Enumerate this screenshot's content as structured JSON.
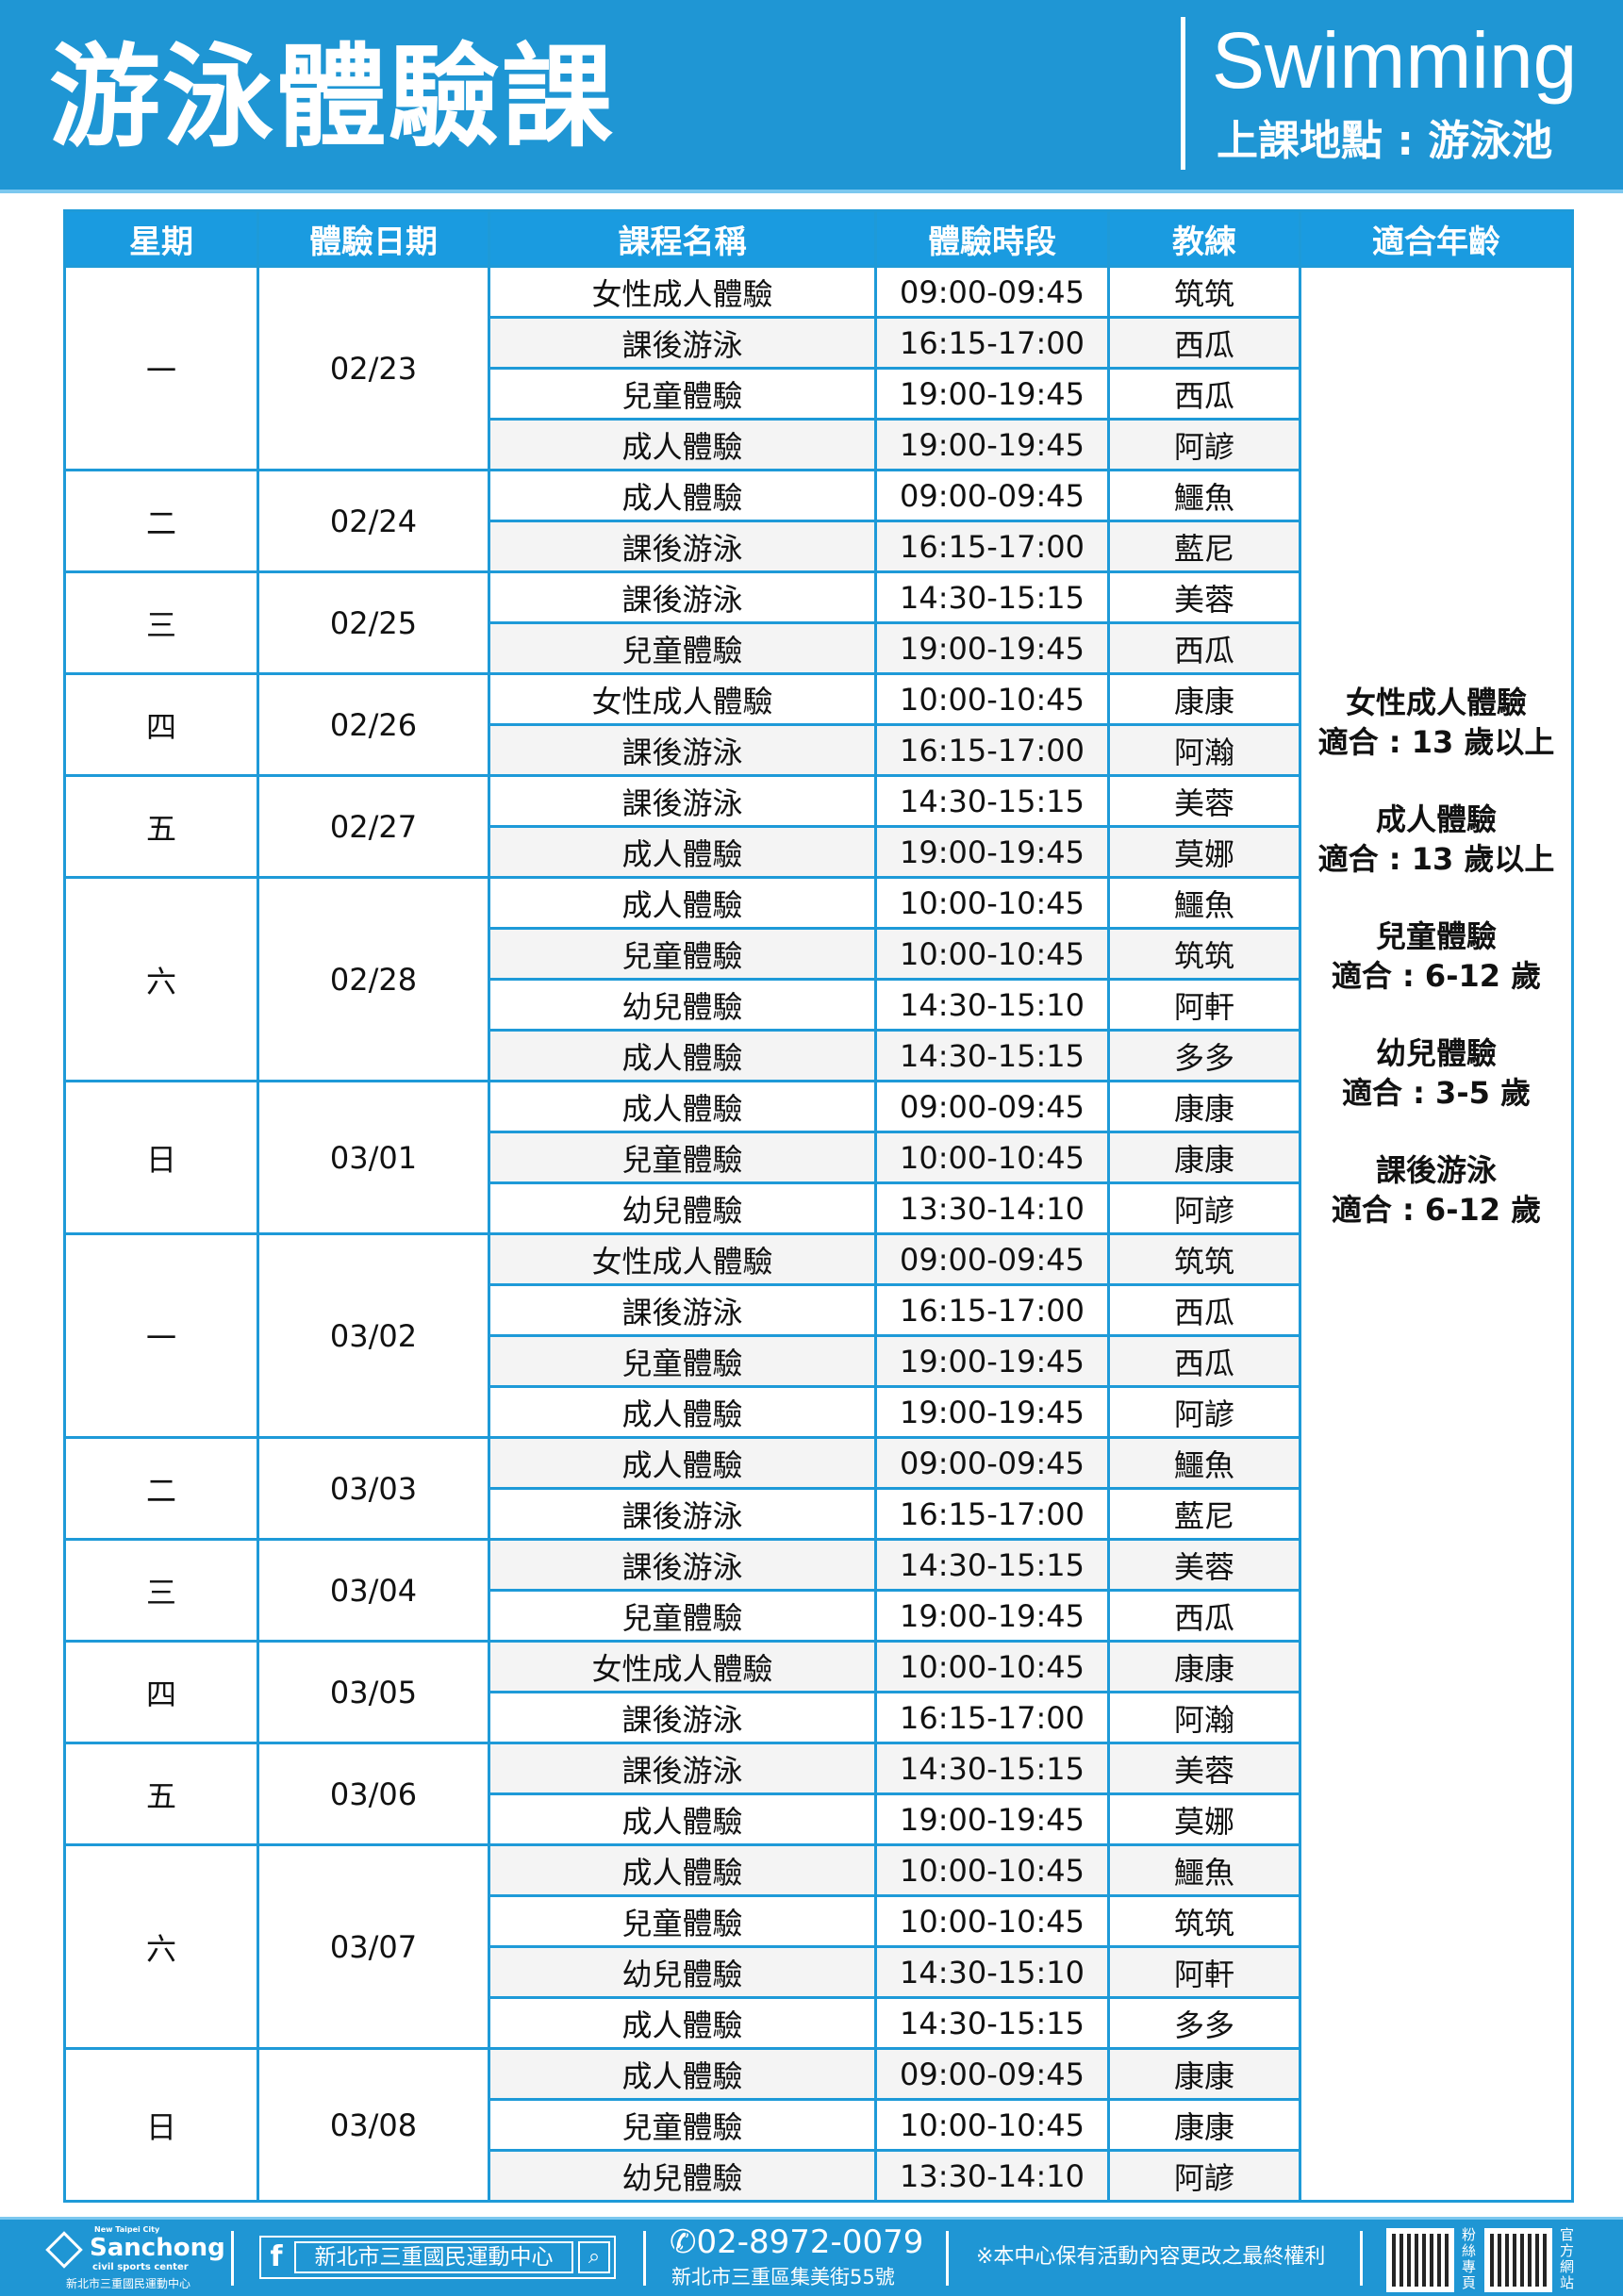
{
  "banner": {
    "title": "游泳體驗課",
    "english_title": "Swimming",
    "location": "上課地點 : 游泳池"
  },
  "table": {
    "headers": [
      "星期",
      "體驗日期",
      "課程名稱",
      "體驗時段",
      "教練",
      "適合年齡"
    ],
    "groups": [
      {
        "day": "一",
        "date": "02/23",
        "rows": [
          [
            "女性成人體驗",
            "09:00-09:45",
            "筑筑"
          ],
          [
            "課後游泳",
            "16:15-17:00",
            "西瓜"
          ],
          [
            "兒童體驗",
            "19:00-19:45",
            "西瓜"
          ],
          [
            "成人體驗",
            "19:00-19:45",
            "阿諺"
          ]
        ]
      },
      {
        "day": "二",
        "date": "02/24",
        "rows": [
          [
            "成人體驗",
            "09:00-09:45",
            "鱷魚"
          ],
          [
            "課後游泳",
            "16:15-17:00",
            "藍尼"
          ]
        ]
      },
      {
        "day": "三",
        "date": "02/25",
        "rows": [
          [
            "課後游泳",
            "14:30-15:15",
            "美蓉"
          ],
          [
            "兒童體驗",
            "19:00-19:45",
            "西瓜"
          ]
        ]
      },
      {
        "day": "四",
        "date": "02/26",
        "rows": [
          [
            "女性成人體驗",
            "10:00-10:45",
            "康康"
          ],
          [
            "課後游泳",
            "16:15-17:00",
            "阿瀚"
          ]
        ]
      },
      {
        "day": "五",
        "date": "02/27",
        "rows": [
          [
            "課後游泳",
            "14:30-15:15",
            "美蓉"
          ],
          [
            "成人體驗",
            "19:00-19:45",
            "莫娜"
          ]
        ]
      },
      {
        "day": "六",
        "date": "02/28",
        "rows": [
          [
            "成人體驗",
            "10:00-10:45",
            "鱷魚"
          ],
          [
            "兒童體驗",
            "10:00-10:45",
            "筑筑"
          ],
          [
            "幼兒體驗",
            "14:30-15:10",
            "阿軒"
          ],
          [
            "成人體驗",
            "14:30-15:15",
            "多多"
          ]
        ]
      },
      {
        "day": "日",
        "date": "03/01",
        "rows": [
          [
            "成人體驗",
            "09:00-09:45",
            "康康"
          ],
          [
            "兒童體驗",
            "10:00-10:45",
            "康康"
          ],
          [
            "幼兒體驗",
            "13:30-14:10",
            "阿諺"
          ]
        ]
      },
      {
        "day": "一",
        "date": "03/02",
        "rows": [
          [
            "女性成人體驗",
            "09:00-09:45",
            "筑筑"
          ],
          [
            "課後游泳",
            "16:15-17:00",
            "西瓜"
          ],
          [
            "兒童體驗",
            "19:00-19:45",
            "西瓜"
          ],
          [
            "成人體驗",
            "19:00-19:45",
            "阿諺"
          ]
        ]
      },
      {
        "day": "二",
        "date": "03/03",
        "rows": [
          [
            "成人體驗",
            "09:00-09:45",
            "鱷魚"
          ],
          [
            "課後游泳",
            "16:15-17:00",
            "藍尼"
          ]
        ]
      },
      {
        "day": "三",
        "date": "03/04",
        "rows": [
          [
            "課後游泳",
            "14:30-15:15",
            "美蓉"
          ],
          [
            "兒童體驗",
            "19:00-19:45",
            "西瓜"
          ]
        ]
      },
      {
        "day": "四",
        "date": "03/05",
        "rows": [
          [
            "女性成人體驗",
            "10:00-10:45",
            "康康"
          ],
          [
            "課後游泳",
            "16:15-17:00",
            "阿瀚"
          ]
        ]
      },
      {
        "day": "五",
        "date": "03/06",
        "rows": [
          [
            "課後游泳",
            "14:30-15:15",
            "美蓉"
          ],
          [
            "成人體驗",
            "19:00-19:45",
            "莫娜"
          ]
        ]
      },
      {
        "day": "六",
        "date": "03/07",
        "rows": [
          [
            "成人體驗",
            "10:00-10:45",
            "鱷魚"
          ],
          [
            "兒童體驗",
            "10:00-10:45",
            "筑筑"
          ],
          [
            "幼兒體驗",
            "14:30-15:10",
            "阿軒"
          ],
          [
            "成人體驗",
            "14:30-15:15",
            "多多"
          ]
        ]
      },
      {
        "day": "日",
        "date": "03/08",
        "rows": [
          [
            "成人體驗",
            "09:00-09:45",
            "康康"
          ],
          [
            "兒童體驗",
            "10:00-10:45",
            "康康"
          ],
          [
            "幼兒體驗",
            "13:30-14:10",
            "阿諺"
          ]
        ]
      }
    ],
    "age_info": [
      {
        "course": "女性成人體驗",
        "age": "適合 : 13 歲以上"
      },
      {
        "course": "成人體驗",
        "age": "適合 : 13 歲以上"
      },
      {
        "course": "兒童體驗",
        "age": "適合 : 6-12 歲"
      },
      {
        "course": "幼兒體驗",
        "age": "適合 : 3-5 歲"
      },
      {
        "course": "課後游泳",
        "age": "適合 : 6-12 歲"
      }
    ]
  },
  "footer": {
    "logo": {
      "small": "New Taipei City",
      "name": "Sanchong",
      "sub": "civil sports center",
      "cn": "新北市三重國民運動中心"
    },
    "facebook": {
      "icon": "facebook-icon",
      "name": "新北市三重國民運動中心",
      "search_icon": "search-icon"
    },
    "phone": "02-8972-0079",
    "address": "新北市三重區集美街55號",
    "note": "※本中心保有活動內容更改之最終權利",
    "qr_labels": [
      "粉絲專頁",
      "官方網站"
    ]
  },
  "colors": {
    "brand_blue": "#1f96d4",
    "header_blue": "#1a9be0",
    "border_blue": "#1e9ad8",
    "row_gray": "#f4f4f4"
  }
}
